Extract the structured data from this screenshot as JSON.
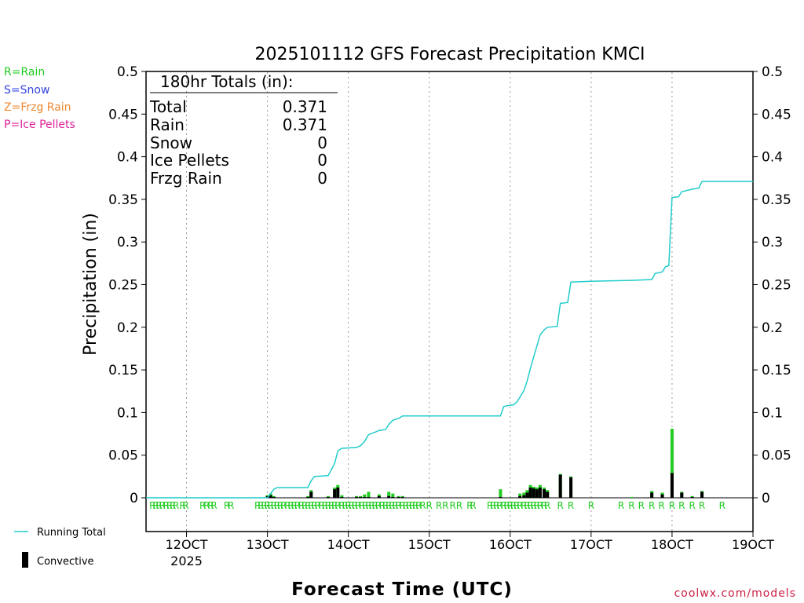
{
  "chart_data": {
    "type": "bar",
    "title": "2025101112 GFS Forecast Precipitation KMCI",
    "xlabel": "Forecast Time (UTC)",
    "ylabel": "Precipitation (in)",
    "ylim": [
      0,
      0.5
    ],
    "yticks": [
      0,
      0.05,
      0.1,
      0.15,
      0.2,
      0.25,
      0.3,
      0.35,
      0.4,
      0.45,
      0.5
    ],
    "ytick_labels": [
      "0",
      "0.05",
      "0.1",
      "0.15",
      "0.2",
      "0.25",
      "0.3",
      "0.35",
      "0.4",
      "0.45",
      "0.5"
    ],
    "xlim_days": [
      11.5,
      19.0
    ],
    "xticks": [
      {
        "day": 12,
        "label": "12OCT",
        "sublabel": "2025"
      },
      {
        "day": 13,
        "label": "13OCT",
        "sublabel": ""
      },
      {
        "day": 14,
        "label": "14OCT",
        "sublabel": ""
      },
      {
        "day": 15,
        "label": "15OCT",
        "sublabel": ""
      },
      {
        "day": 16,
        "label": "16OCT",
        "sublabel": ""
      },
      {
        "day": 17,
        "label": "17OCT",
        "sublabel": ""
      },
      {
        "day": 18,
        "label": "18OCT",
        "sublabel": ""
      },
      {
        "day": 19,
        "label": "19OCT",
        "sublabel": ""
      }
    ],
    "grid": "vertical dotted",
    "ptype_legend": [
      {
        "text": "R=Rain",
        "color": "#22cc22"
      },
      {
        "text": "S=Snow",
        "color": "#3344dd"
      },
      {
        "text": "Z=Frzg Rain",
        "color": "#ee8833"
      },
      {
        "text": "P=Ice Pellets",
        "color": "#dd2299"
      }
    ],
    "series_legend": [
      {
        "text": "Running Total",
        "color": "#22cccc"
      },
      {
        "text": "Convective",
        "color": "#000000"
      }
    ],
    "totals": {
      "header": "180hr Totals (in):",
      "rows": [
        {
          "label": "Total",
          "value": "0.371"
        },
        {
          "label": "Rain",
          "value": "0.371"
        },
        {
          "label": "Snow",
          "value": "0"
        },
        {
          "label": "Ice Pellets",
          "value": "0"
        },
        {
          "label": "Frzg Rain",
          "value": "0"
        }
      ]
    },
    "bars": [
      {
        "day": 13.0,
        "total": 0.003,
        "convective": 0.002
      },
      {
        "day": 13.04,
        "total": 0.005,
        "convective": 0.003
      },
      {
        "day": 13.08,
        "total": 0.002,
        "convective": 0.001
      },
      {
        "day": 13.5,
        "total": 0.002,
        "convective": 0.001
      },
      {
        "day": 13.54,
        "total": 0.009,
        "convective": 0.007
      },
      {
        "day": 13.75,
        "total": 0.002,
        "convective": 0.001
      },
      {
        "day": 13.83,
        "total": 0.012,
        "convective": 0.01
      },
      {
        "day": 13.87,
        "total": 0.015,
        "convective": 0.012
      },
      {
        "day": 13.92,
        "total": 0.003,
        "convective": 0.001
      },
      {
        "day": 14.1,
        "total": 0.002,
        "convective": 0.001
      },
      {
        "day": 14.15,
        "total": 0.002,
        "convective": 0.001
      },
      {
        "day": 14.2,
        "total": 0.004,
        "convective": 0.001
      },
      {
        "day": 14.25,
        "total": 0.007,
        "convective": 0.001
      },
      {
        "day": 14.38,
        "total": 0.004,
        "convective": 0.002
      },
      {
        "day": 14.5,
        "total": 0.007,
        "convective": 0.002
      },
      {
        "day": 14.55,
        "total": 0.005,
        "convective": 0.001
      },
      {
        "day": 14.62,
        "total": 0.002,
        "convective": 0.001
      },
      {
        "day": 14.67,
        "total": 0.002,
        "convective": 0.001
      },
      {
        "day": 15.88,
        "total": 0.01,
        "convective": 0.001
      },
      {
        "day": 16.12,
        "total": 0.005,
        "convective": 0.002
      },
      {
        "day": 16.17,
        "total": 0.006,
        "convective": 0.003
      },
      {
        "day": 16.21,
        "total": 0.009,
        "convective": 0.006
      },
      {
        "day": 16.25,
        "total": 0.015,
        "convective": 0.012
      },
      {
        "day": 16.29,
        "total": 0.013,
        "convective": 0.011
      },
      {
        "day": 16.33,
        "total": 0.012,
        "convective": 0.01
      },
      {
        "day": 16.37,
        "total": 0.015,
        "convective": 0.012
      },
      {
        "day": 16.42,
        "total": 0.012,
        "convective": 0.01
      },
      {
        "day": 16.46,
        "total": 0.009,
        "convective": 0.007
      },
      {
        "day": 16.62,
        "total": 0.028,
        "convective": 0.027
      },
      {
        "day": 16.75,
        "total": 0.025,
        "convective": 0.024
      },
      {
        "day": 17.5,
        "total": 0.001,
        "convective": 0.0
      },
      {
        "day": 17.75,
        "total": 0.008,
        "convective": 0.006
      },
      {
        "day": 17.88,
        "total": 0.006,
        "convective": 0.004
      },
      {
        "day": 18.0,
        "total": 0.081,
        "convective": 0.029
      },
      {
        "day": 18.12,
        "total": 0.007,
        "convective": 0.006
      },
      {
        "day": 18.25,
        "total": 0.002,
        "convective": 0.001
      },
      {
        "day": 18.37,
        "total": 0.008,
        "convective": 0.007
      }
    ],
    "running_total": [
      [
        11.5,
        0.0
      ],
      [
        13.0,
        0.0
      ],
      [
        13.04,
        0.005
      ],
      [
        13.08,
        0.01
      ],
      [
        13.12,
        0.012
      ],
      [
        13.5,
        0.012
      ],
      [
        13.54,
        0.02
      ],
      [
        13.58,
        0.025
      ],
      [
        13.75,
        0.026
      ],
      [
        13.83,
        0.04
      ],
      [
        13.87,
        0.055
      ],
      [
        13.92,
        0.058
      ],
      [
        14.1,
        0.059
      ],
      [
        14.15,
        0.061
      ],
      [
        14.2,
        0.066
      ],
      [
        14.25,
        0.074
      ],
      [
        14.33,
        0.077
      ],
      [
        14.38,
        0.079
      ],
      [
        14.46,
        0.08
      ],
      [
        14.5,
        0.086
      ],
      [
        14.55,
        0.091
      ],
      [
        14.62,
        0.093
      ],
      [
        14.67,
        0.096
      ],
      [
        15.88,
        0.096
      ],
      [
        15.92,
        0.107
      ],
      [
        15.96,
        0.108
      ],
      [
        16.04,
        0.109
      ],
      [
        16.08,
        0.112
      ],
      [
        16.12,
        0.118
      ],
      [
        16.17,
        0.126
      ],
      [
        16.21,
        0.137
      ],
      [
        16.25,
        0.152
      ],
      [
        16.29,
        0.165
      ],
      [
        16.33,
        0.178
      ],
      [
        16.37,
        0.191
      ],
      [
        16.42,
        0.197
      ],
      [
        16.46,
        0.2
      ],
      [
        16.58,
        0.201
      ],
      [
        16.62,
        0.228
      ],
      [
        16.71,
        0.229
      ],
      [
        16.75,
        0.253
      ],
      [
        17.0,
        0.254
      ],
      [
        17.5,
        0.255
      ],
      [
        17.75,
        0.256
      ],
      [
        17.79,
        0.263
      ],
      [
        17.88,
        0.265
      ],
      [
        17.92,
        0.271
      ],
      [
        17.96,
        0.272
      ],
      [
        18.0,
        0.352
      ],
      [
        18.08,
        0.353
      ],
      [
        18.12,
        0.359
      ],
      [
        18.25,
        0.362
      ],
      [
        18.33,
        0.363
      ],
      [
        18.37,
        0.371
      ],
      [
        19.0,
        0.371
      ]
    ],
    "ptype_markers": {
      "letter": "R",
      "color": "#22cc22",
      "days": [
        11.58,
        11.62,
        11.66,
        11.7,
        11.75,
        11.79,
        11.83,
        11.87,
        11.95,
        11.99,
        12.2,
        12.25,
        12.3,
        12.34,
        12.5,
        12.55,
        12.88,
        12.92,
        12.96,
        13.0,
        13.04,
        13.08,
        13.12,
        13.16,
        13.2,
        13.25,
        13.29,
        13.33,
        13.37,
        13.42,
        13.46,
        13.5,
        13.54,
        13.58,
        13.62,
        13.67,
        13.71,
        13.75,
        13.79,
        13.83,
        13.87,
        13.92,
        13.96,
        14.0,
        14.04,
        14.08,
        14.12,
        14.17,
        14.21,
        14.25,
        14.29,
        14.33,
        14.37,
        14.42,
        14.46,
        14.5,
        14.54,
        14.58,
        14.62,
        14.67,
        14.71,
        14.75,
        14.79,
        14.83,
        14.87,
        14.92,
        15.0,
        15.12,
        15.2,
        15.29,
        15.37,
        15.5,
        15.54,
        15.75,
        15.79,
        15.83,
        15.87,
        15.92,
        15.96,
        16.0,
        16.04,
        16.08,
        16.12,
        16.17,
        16.21,
        16.25,
        16.29,
        16.33,
        16.37,
        16.42,
        16.46,
        16.62,
        16.75,
        17.0,
        17.37,
        17.5,
        17.62,
        17.75,
        17.87,
        18.0,
        18.12,
        18.25,
        18.37,
        18.62
      ]
    },
    "source": "coolwx.com/models"
  }
}
